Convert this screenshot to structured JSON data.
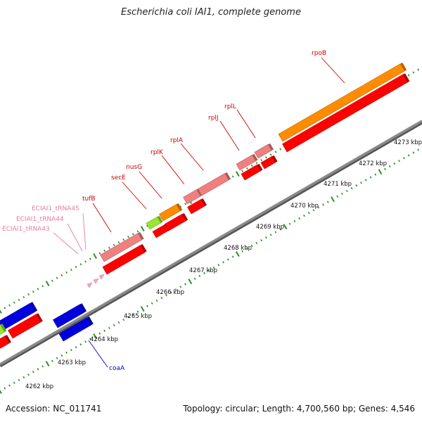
{
  "title": "Escherichia coli IAI1, complete genome",
  "footer": {
    "accession": "Accession: NC_011741",
    "summary": "Topology: circular; Length: 4,700,560 bp; Genes: 4,546"
  },
  "scale_labels": [
    "4262 kbp",
    "4263 kbp",
    "4264 kbp",
    "4265 kbp",
    "4266 kbp",
    "4267 kbp",
    "4268 kbp",
    "4269 kbp",
    "4270 kbp",
    "4271 kbp",
    "4272 kbp",
    "4273 kbp"
  ],
  "gene_labels": [
    {
      "text": "rpoB",
      "color": "#cc0000"
    },
    {
      "text": "rplL",
      "color": "#cc0000"
    },
    {
      "text": "rplJ",
      "color": "#cc0000"
    },
    {
      "text": "rplA",
      "color": "#cc0000"
    },
    {
      "text": "rplK",
      "color": "#cc0000"
    },
    {
      "text": "nusG",
      "color": "#cc0000"
    },
    {
      "text": "secE",
      "color": "#cc0000"
    },
    {
      "text": "tufB",
      "color": "#cc0000"
    },
    {
      "text": "ECIAI1_tRNA45",
      "color": "#e87aa4"
    },
    {
      "text": "ECIAI1_tRNA44",
      "color": "#e87aa4"
    },
    {
      "text": "ECIAI1_tRNA43",
      "color": "#e87aa4"
    },
    {
      "text": "coaA",
      "color": "#0000cc"
    }
  ],
  "colors": {
    "cds": "#ff0000",
    "rrna_like": "#f08080",
    "orange": "#ff8c00",
    "green": "#99e62e",
    "blue": "#0000dd",
    "trna": "#f7a1c9",
    "tick": "#2e8b2e",
    "backbone": "#8a8a8a"
  }
}
